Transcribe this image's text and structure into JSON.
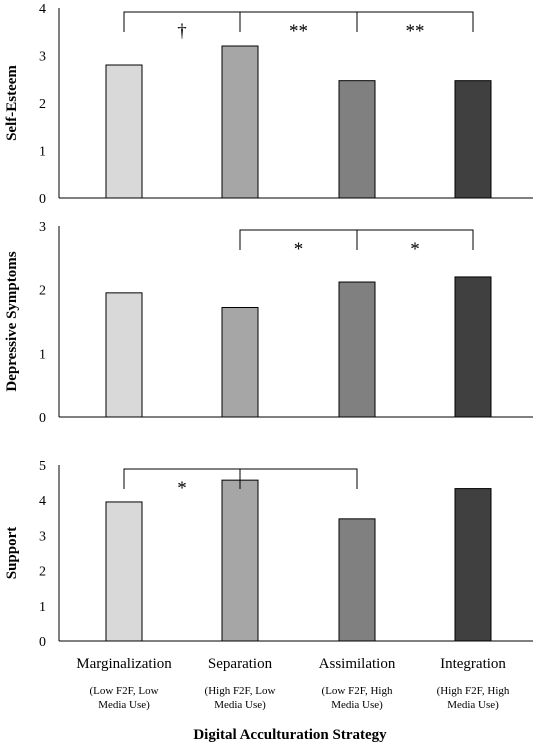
{
  "chart_data": {
    "type": "bar",
    "categories": [
      "Marginalization",
      "Separation",
      "Assimilation",
      "Integration"
    ],
    "category_sublabels": [
      [
        "(Low F2F, Low",
        "Media Use)"
      ],
      [
        "(High F2F, Low",
        "Media Use)"
      ],
      [
        "(Low F2F, High",
        "Media Use)"
      ],
      [
        "(High F2F, High",
        "Media Use)"
      ]
    ],
    "xlabel": "Digital Acculturation  Strategy",
    "bar_colors": [
      "#d9d9d9",
      "#a6a6a6",
      "#808080",
      "#404040"
    ],
    "panels": [
      {
        "ylabel": "Self-Esteem",
        "ylim": [
          0,
          4
        ],
        "yticks": [
          "0",
          "1",
          "2",
          "3",
          "4"
        ],
        "values": [
          2.8,
          3.2,
          2.47,
          2.47
        ],
        "brackets": [
          {
            "from": 0,
            "to": 1,
            "label": "†"
          },
          {
            "from": 1,
            "to": 2,
            "label": "**"
          },
          {
            "from": 2,
            "to": 3,
            "label": "**"
          }
        ]
      },
      {
        "ylabel": "Depressive Symptoms",
        "ylim": [
          0,
          3
        ],
        "yticks": [
          "0",
          "1",
          "2",
          "3"
        ],
        "values": [
          1.95,
          1.72,
          2.12,
          2.2
        ],
        "brackets": [
          {
            "from": 1,
            "to": 2,
            "label": "*"
          },
          {
            "from": 2,
            "to": 3,
            "label": "*"
          }
        ]
      },
      {
        "ylabel": "Support",
        "ylim": [
          0,
          5
        ],
        "yticks": [
          "0",
          "1",
          "2",
          "3",
          "4",
          "5"
        ],
        "values": [
          3.95,
          4.57,
          3.47,
          4.33
        ],
        "brackets": [
          {
            "from": 0,
            "to": 1,
            "label": "*"
          },
          {
            "from": 1,
            "to": 2,
            "label": ""
          }
        ]
      }
    ]
  }
}
